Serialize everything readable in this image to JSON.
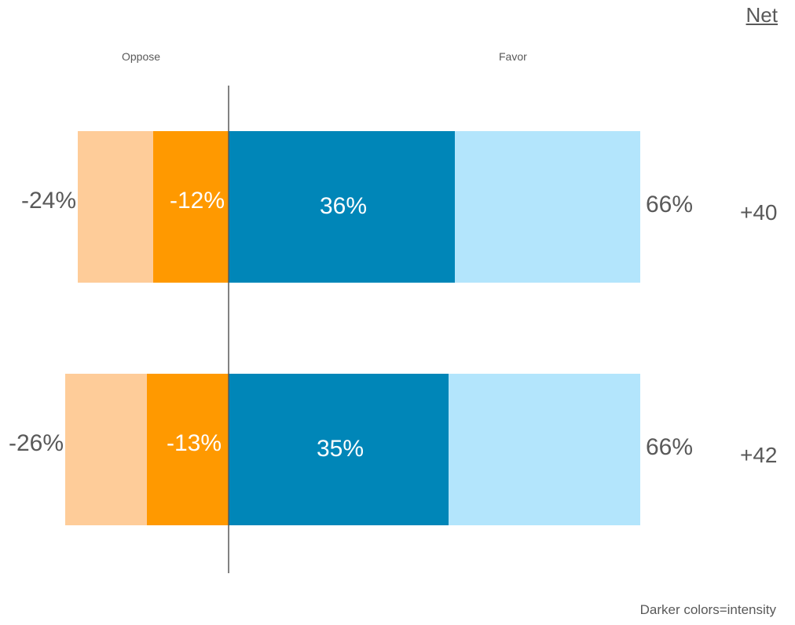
{
  "header": {
    "net_label": "Net"
  },
  "side_labels": {
    "oppose": "Oppose",
    "favor": "Favor"
  },
  "footnote": "Darker colors=intensity",
  "colors": {
    "oppose_total": "#FECC99",
    "oppose_strong": "#FF9900",
    "favor_strong": "#0086B8",
    "favor_total": "#B3E5FC",
    "axis": "#595959"
  },
  "chart_data": {
    "type": "bar",
    "orientation": "horizontal-diverging",
    "categories": [
      "",
      ""
    ],
    "series": [
      {
        "values": [
          -24,
          -26
        ],
        "labels": [
          "-24%",
          "-26%"
        ]
      },
      {
        "values": [
          -12,
          -13
        ],
        "labels": [
          "-12%",
          "-13%"
        ]
      },
      {
        "values": [
          36,
          35
        ],
        "labels": [
          "36%",
          "35%"
        ]
      },
      {
        "values": [
          66,
          66
        ],
        "labels": [
          "66%",
          "66%"
        ]
      }
    ],
    "net": {
      "values": [
        40,
        42
      ],
      "labels": [
        "+40",
        "+42"
      ]
    },
    "xlim": [
      -26,
      66
    ]
  }
}
